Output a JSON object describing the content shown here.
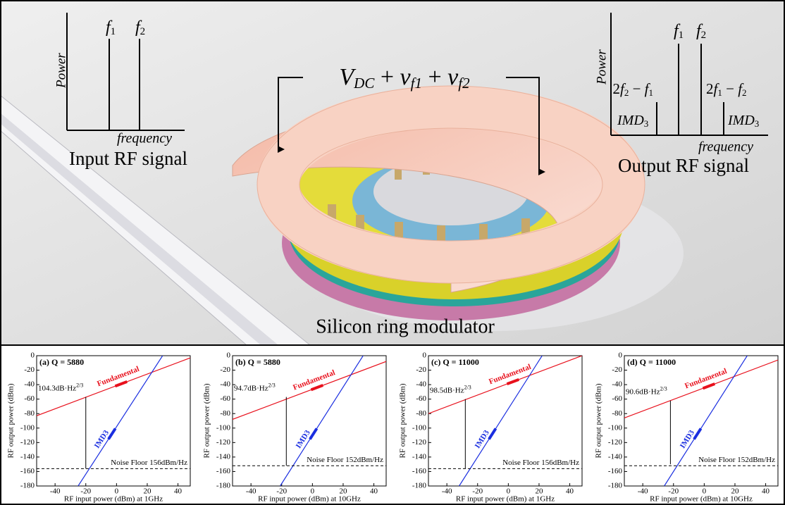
{
  "illustration": {
    "input": {
      "axis": "Power",
      "f1": {
        "base": "f",
        "sub": "1"
      },
      "f2": {
        "base": "f",
        "sub": "2"
      },
      "freq": "frequency",
      "caption": "Input RF signal"
    },
    "output": {
      "axis": "Power",
      "f1": {
        "base": "f",
        "sub": "1"
      },
      "f2": {
        "base": "f",
        "sub": "2"
      },
      "left": {
        "a": "2",
        "b": "f",
        "bs": "2",
        "op": " − ",
        "c": "f",
        "cs": "1"
      },
      "right": {
        "a": "2",
        "b": "f",
        "bs": "1",
        "op": " − ",
        "c": "f",
        "cs": "2"
      },
      "imd": {
        "base": "IMD",
        "sub": "3"
      },
      "freq": "frequency",
      "caption": "Output RF signal"
    },
    "voltage": {
      "v": "V",
      "vs": "DC",
      "p1": " + ",
      "a": "v",
      "as": "f1",
      "p2": " + ",
      "b": "v",
      "bs": "f2"
    },
    "caption": "Silicon ring modulator"
  },
  "charts": [
    {
      "type": "line",
      "title": "(a) Q = 5880",
      "xlabel": "RF input power (dBm) at 1GHz",
      "ylabel": "RF output power (dBm)",
      "xlim": [
        -52,
        48
      ],
      "ylim": [
        -180,
        0
      ],
      "xticks": [
        -40,
        -20,
        0,
        20,
        40
      ],
      "yticks": [
        0,
        -20,
        -40,
        -60,
        -80,
        -100,
        -120,
        -140,
        -160,
        -180
      ],
      "series": [
        {
          "name": "Fundamental",
          "color": "#e8101c",
          "x": [
            -52,
            48
          ],
          "values": [
            -83,
            -3
          ]
        },
        {
          "name": "IMD3",
          "color": "#1a2ee0",
          "x": [
            -25,
            30
          ],
          "values": [
            -180,
            0
          ]
        }
      ],
      "noise": {
        "value": -156,
        "label": "Noise Floor 156dBm/Hz"
      },
      "range": {
        "x": -20,
        "from": -156,
        "to": -57,
        "label": "104.3dB·Hz",
        "sup": "2/3"
      }
    },
    {
      "type": "line",
      "title": "(b) Q = 5880",
      "xlabel": "RF input power (dBm) at 10GHz",
      "ylabel": "RF output power (dBm)",
      "xlim": [
        -52,
        48
      ],
      "ylim": [
        -180,
        0
      ],
      "xticks": [
        -40,
        -20,
        0,
        20,
        40
      ],
      "yticks": [
        0,
        -20,
        -40,
        -60,
        -80,
        -100,
        -120,
        -140,
        -160,
        -180
      ],
      "series": [
        {
          "name": "Fundamental",
          "color": "#e8101c",
          "x": [
            -52,
            48
          ],
          "values": [
            -88,
            -8
          ]
        },
        {
          "name": "IMD3",
          "color": "#1a2ee0",
          "x": [
            -21,
            33
          ],
          "values": [
            -180,
            0
          ]
        }
      ],
      "noise": {
        "value": -152,
        "label": "Noise Floor 152dBm/Hz"
      },
      "range": {
        "x": -17,
        "from": -152,
        "to": -57,
        "label": "94.7dB·Hz",
        "sup": "2/3"
      }
    },
    {
      "type": "line",
      "title": "(c) Q = 11000",
      "xlabel": "RF input power (dBm) at 1GHz",
      "ylabel": "RF output power (dBm)",
      "xlim": [
        -52,
        48
      ],
      "ylim": [
        -180,
        0
      ],
      "xticks": [
        -40,
        -20,
        0,
        20,
        40
      ],
      "yticks": [
        0,
        -20,
        -40,
        -60,
        -80,
        -100,
        -120,
        -140,
        -160,
        -180
      ],
      "series": [
        {
          "name": "Fundamental",
          "color": "#e8101c",
          "x": [
            -52,
            48
          ],
          "values": [
            -80,
            0
          ]
        },
        {
          "name": "IMD3",
          "color": "#1a2ee0",
          "x": [
            -32,
            22
          ],
          "values": [
            -180,
            0
          ]
        }
      ],
      "noise": {
        "value": -156,
        "label": "Noise Floor 156dBm/Hz"
      },
      "range": {
        "x": -28,
        "from": -156,
        "to": -60,
        "label": "98.5dB·Hz",
        "sup": "2/3"
      }
    },
    {
      "type": "line",
      "title": "(d) Q = 11000",
      "xlabel": "RF input power (dBm) at 10GHz",
      "ylabel": "RF output power (dBm)",
      "xlim": [
        -52,
        48
      ],
      "ylim": [
        -180,
        0
      ],
      "xticks": [
        -40,
        -20,
        0,
        20,
        40
      ],
      "yticks": [
        0,
        -20,
        -40,
        -60,
        -80,
        -100,
        -120,
        -140,
        -160,
        -180
      ],
      "series": [
        {
          "name": "Fundamental",
          "color": "#e8101c",
          "x": [
            -52,
            48
          ],
          "values": [
            -86,
            -6
          ]
        },
        {
          "name": "IMD3",
          "color": "#1a2ee0",
          "x": [
            -26,
            28
          ],
          "values": [
            -180,
            0
          ]
        }
      ],
      "noise": {
        "value": -152,
        "label": "Noise Floor 152dBm/Hz"
      },
      "range": {
        "x": -22,
        "from": -150,
        "to": -62,
        "label": "90.6dB·Hz",
        "sup": "2/3"
      }
    }
  ]
}
